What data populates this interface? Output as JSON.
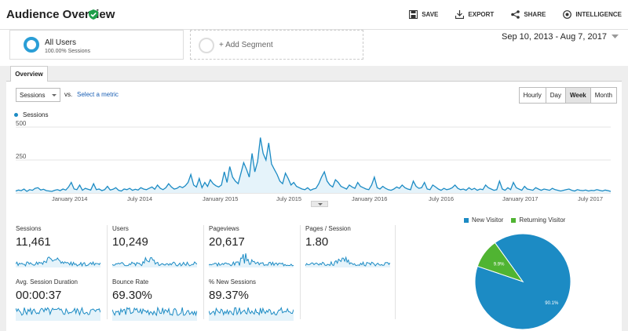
{
  "header": {
    "title": "Audience Overview",
    "actions": {
      "save": "SAVE",
      "export": "EXPORT",
      "share": "SHARE",
      "intelligence": "INTELLIGENCE"
    }
  },
  "segments": {
    "all_users": {
      "name": "All Users",
      "sub": "100.00% Sessions"
    },
    "add_label": "+ Add Segment"
  },
  "date_range": "Sep 10, 2013 - Aug 7, 2017",
  "tabs": {
    "overview": "Overview"
  },
  "controls": {
    "metric": "Sessions",
    "vs": "vs.",
    "select_metric": "Select a metric",
    "periods": [
      "Hourly",
      "Day",
      "Week",
      "Month"
    ],
    "active_period": "Week"
  },
  "colors": {
    "accent": "#1c8bc4",
    "returning": "#50b432",
    "fill": "#e5f3fa"
  },
  "chart_data": {
    "type": "area",
    "series": [
      {
        "name": "Sessions",
        "values": [
          15,
          22,
          18,
          30,
          12,
          25,
          20,
          35,
          40,
          22,
          28,
          18,
          15,
          12,
          20,
          25,
          18,
          30,
          22,
          45,
          80,
          30,
          25,
          60,
          20,
          35,
          28,
          22,
          70,
          25,
          30,
          18,
          25,
          50,
          22,
          28,
          40,
          20,
          15,
          30,
          25,
          35,
          20,
          28,
          22,
          40,
          30,
          25,
          35,
          45,
          28,
          60,
          35,
          25,
          40,
          70,
          45,
          30,
          35,
          50,
          40,
          55,
          80,
          140,
          60,
          45,
          110,
          40,
          80,
          50,
          100,
          70,
          55,
          45,
          60,
          160,
          80,
          200,
          120,
          90,
          70,
          150,
          230,
          180,
          120,
          300,
          160,
          240,
          420,
          300,
          250,
          380,
          220,
          180,
          140,
          90,
          70,
          150,
          110,
          60,
          80,
          50,
          40,
          30,
          25,
          40,
          20,
          30,
          35,
          70,
          120,
          160,
          90,
          60,
          45,
          100,
          80,
          50,
          40,
          30,
          60,
          45,
          35,
          80,
          50,
          40,
          30,
          25,
          60,
          120,
          40,
          30,
          50,
          35,
          25,
          20,
          30,
          45,
          35,
          60,
          40,
          30,
          25,
          90,
          50,
          35,
          40,
          80,
          30,
          25,
          60,
          45,
          30,
          20,
          35,
          25,
          30,
          40,
          60,
          35,
          25,
          30,
          20,
          40,
          25,
          35,
          20,
          30,
          25,
          60,
          40,
          30,
          20,
          25,
          90,
          30,
          20,
          40,
          25,
          80,
          40,
          30,
          20,
          50,
          30,
          25,
          20,
          40,
          30,
          20,
          30,
          25,
          20,
          35,
          25,
          20,
          15,
          20,
          25,
          30,
          20,
          15,
          25,
          20,
          18,
          22,
          15,
          20,
          18,
          25,
          20,
          15,
          22,
          18,
          12
        ]
      }
    ],
    "x_labels": [
      "January 2014",
      "July 2014",
      "January 2015",
      "July 2015",
      "January 2016",
      "July 2016",
      "January 2017",
      "July 2017"
    ],
    "y_ticks": [
      250,
      500
    ],
    "ylim": [
      0,
      500
    ]
  },
  "metrics": [
    {
      "label": "Sessions",
      "value": "11,461"
    },
    {
      "label": "Users",
      "value": "10,249"
    },
    {
      "label": "Pageviews",
      "value": "20,617"
    },
    {
      "label": "Pages / Session",
      "value": "1.80"
    },
    {
      "label": "Avg. Session Duration",
      "value": "00:00:37"
    },
    {
      "label": "Bounce Rate",
      "value": "69.30%"
    },
    {
      "label": "% New Sessions",
      "value": "89.37%"
    }
  ],
  "pie_data": {
    "type": "pie",
    "slices": [
      {
        "name": "New Visitor",
        "value": 90.1,
        "label": "90.1%"
      },
      {
        "name": "Returning Visitor",
        "value": 9.9,
        "label": "9.9%"
      }
    ]
  }
}
